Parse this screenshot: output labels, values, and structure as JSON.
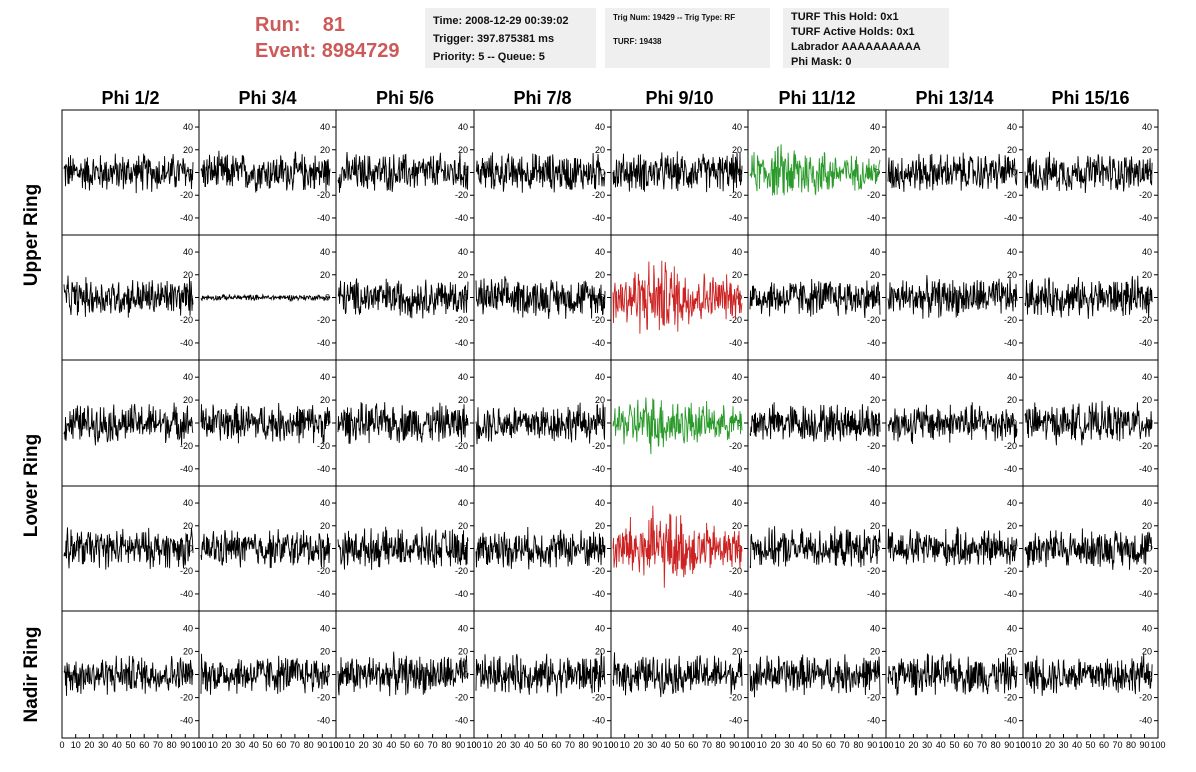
{
  "header": {
    "run_label": "Run:",
    "run_value": "81",
    "event_label": "Event:",
    "event_value": "8984729"
  },
  "info_box_1": {
    "time": "Time: 2008-12-29 00:39:02",
    "trigger": "Trigger: 397.875381 ms",
    "priority": "Priority: 5 -- Queue: 5"
  },
  "info_box_2": {
    "trig": "Trig Num: 19429 -- Trig Type: RF",
    "turf": "TURF: 19438"
  },
  "info_box_3": {
    "this_hold": "TURF This Hold: 0x1",
    "active_holds": "TURF Active Holds: 0x1",
    "labrador": "Labrador AAAAAAAAAA",
    "phi_mask": "Phi Mask: 0"
  },
  "colors": {
    "normal": "#000000",
    "triggered": "#2a9a2a",
    "antenna_hit": "#cc2222",
    "run_text": "#cc5a5a",
    "info_bg": "#efefef"
  },
  "chart_data": {
    "type": "line",
    "columns": [
      "Phi 1/2",
      "Phi 3/4",
      "Phi 5/6",
      "Phi 7/8",
      "Phi 9/10",
      "Phi 11/12",
      "Phi 13/14",
      "Phi 15/16"
    ],
    "row_groups": [
      "Upper Ring",
      "Lower Ring",
      "Nadir Ring"
    ],
    "xlim": [
      0,
      100
    ],
    "x_ticks": [
      0,
      10,
      20,
      30,
      40,
      50,
      60,
      70,
      80,
      90,
      100
    ],
    "ylim": [
      -55,
      55
    ],
    "y_ticks": [
      40,
      20,
      0,
      -20,
      -40
    ],
    "panels_per_column": 5,
    "highlighted_panels": [
      {
        "row": 0,
        "col": 5,
        "color": "triggered",
        "amplitude": 30
      },
      {
        "row": 1,
        "col": 4,
        "color": "antenna_hit",
        "amplitude": 40
      },
      {
        "row": 2,
        "col": 4,
        "color": "triggered",
        "amplitude": 30
      },
      {
        "row": 3,
        "col": 4,
        "color": "antenna_hit",
        "amplitude": 40
      }
    ],
    "quiet_panels": [
      {
        "row": 1,
        "col": 1,
        "amplitude": 3
      }
    ],
    "typical_amplitude": 20,
    "samples_per_trace": 260
  }
}
